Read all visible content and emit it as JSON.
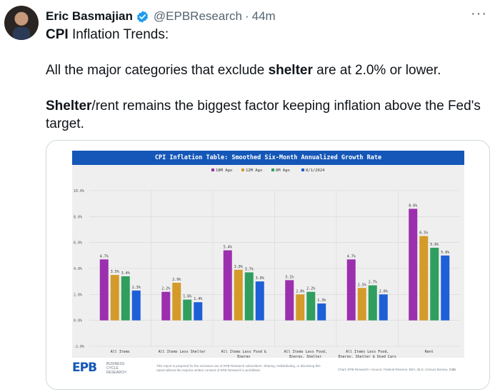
{
  "tweet": {
    "author_name": "Eric Basmajian",
    "handle": "@EPBResearch",
    "separator": "·",
    "time": "44m",
    "more": "···",
    "line1_bold": "CPI",
    "line1_rest": " Inflation Trends:",
    "line2_pre": "All the major categories that exclude ",
    "line2_bold": "shelter",
    "line2_post": " are at 2.0% or lower.",
    "line3_bold": "Shelter",
    "line3_rest": "/rent remains the biggest factor keeping inflation above the Fed's target."
  },
  "icons": {
    "verified": "verified-badge-icon",
    "more": "more-horizontal-icon"
  },
  "colors": {
    "brand": "#1457b8",
    "verified": "#1d9bf0",
    "series": [
      "#9b2fae",
      "#d49b2a",
      "#2f9e5f",
      "#1d5fd6"
    ]
  },
  "chart_data": {
    "type": "bar",
    "title": "CPI Inflation Table: Smoothed Six-Month Annualized Growth Rate",
    "categories": [
      "All Items",
      "All Items Less Shelter",
      "All Items Less Food & Energy",
      "All Items Less Food, Energy, Shelter",
      "All Items Less Food, Energy, Shelter & Used Cars",
      "Rent"
    ],
    "category_lines": [
      [
        "All Items"
      ],
      [
        "All Items Less Shelter"
      ],
      [
        "All Items Less Food &",
        "Energy"
      ],
      [
        "All Items Less Food,",
        "Energy, Shelter"
      ],
      [
        "All Items Less Food,",
        "Energy, Shelter & Used Cars"
      ],
      [
        "Rent"
      ]
    ],
    "series": [
      {
        "name": "18M Ago",
        "values": [
          4.7,
          2.2,
          5.4,
          3.1,
          4.7,
          8.6
        ]
      },
      {
        "name": "12M Ago",
        "values": [
          3.5,
          2.9,
          3.9,
          2.0,
          2.5,
          6.5
        ]
      },
      {
        "name": "6M Ago",
        "values": [
          3.4,
          1.6,
          3.7,
          2.2,
          2.7,
          5.6
        ]
      },
      {
        "name": "8/1/2024",
        "values": [
          2.3,
          1.4,
          3.0,
          1.3,
          2.0,
          5.0
        ]
      }
    ],
    "data_labels": [
      [
        "4.7%",
        "2.2%",
        "5.4%",
        "3.1%",
        "4.7%",
        "8.6%"
      ],
      [
        "3.5%",
        "2.9%",
        "3.9%",
        "2.0%",
        "2.5%",
        "6.5%"
      ],
      [
        "3.4%",
        "1.6%",
        "3.7%",
        "2.2%",
        "2.7%",
        "5.6%"
      ],
      [
        "2.3%",
        "1.4%",
        "3.0%",
        "1.3%",
        "2.0%",
        "5.0%"
      ]
    ],
    "y_ticks": [
      -2,
      0,
      2,
      4,
      6,
      8,
      10
    ],
    "y_tick_labels": [
      "-2.0%",
      "0.0%",
      "2.0%",
      "4.0%",
      "6.0%",
      "8.0%",
      "10.0%"
    ],
    "ylim": [
      -2,
      10
    ],
    "legend_position": "top-center",
    "grid": true
  },
  "footer": {
    "logo": "EPB",
    "logo_sub": "BUSINESS CYCLE RESEARCH",
    "disclaimer": "This report is prepared for the exclusive use of EPB Research subscribers. Sharing, redistributing, or disclosing this report without the express written consent of EPB Research is prohibited.",
    "source": "Chart: EPB Research • Source: Federal Reserve, BEA, BLS, Census Bureau, DOL",
    "page": "10"
  }
}
